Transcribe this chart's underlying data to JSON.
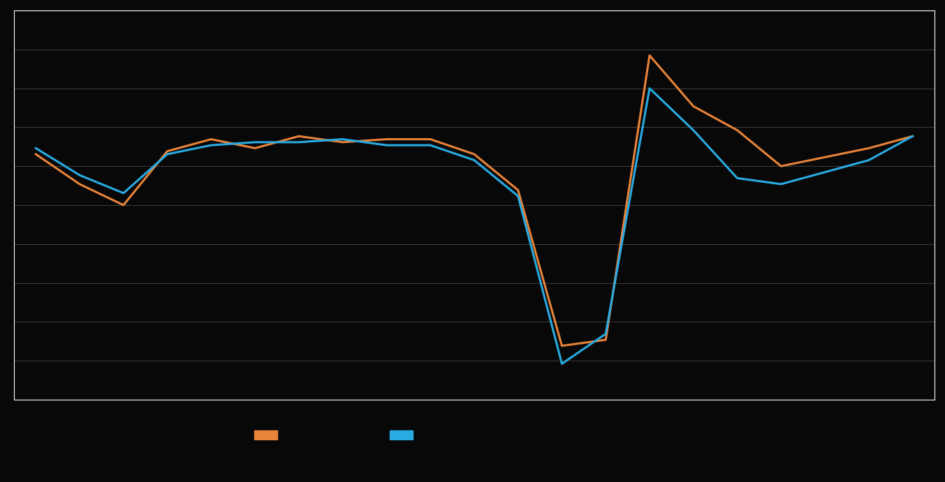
{
  "orange_y": [
    22,
    12,
    5,
    23,
    27,
    24,
    28,
    26,
    27,
    27,
    22,
    10,
    -42,
    -40,
    55,
    38,
    30,
    18,
    21,
    24,
    28
  ],
  "blue_y": [
    24,
    15,
    9,
    22,
    25,
    26,
    26,
    27,
    25,
    25,
    20,
    8,
    -48,
    -38,
    44,
    30,
    14,
    12,
    16,
    20,
    28
  ],
  "orange_color": "#E8833A",
  "blue_color": "#29ABE2",
  "background_color": "#080808",
  "plot_bg_color": "#080808",
  "grid_color": "#404040",
  "line_width": 2.2,
  "ylim_min": -60,
  "ylim_max": 70,
  "num_gridlines": 10
}
